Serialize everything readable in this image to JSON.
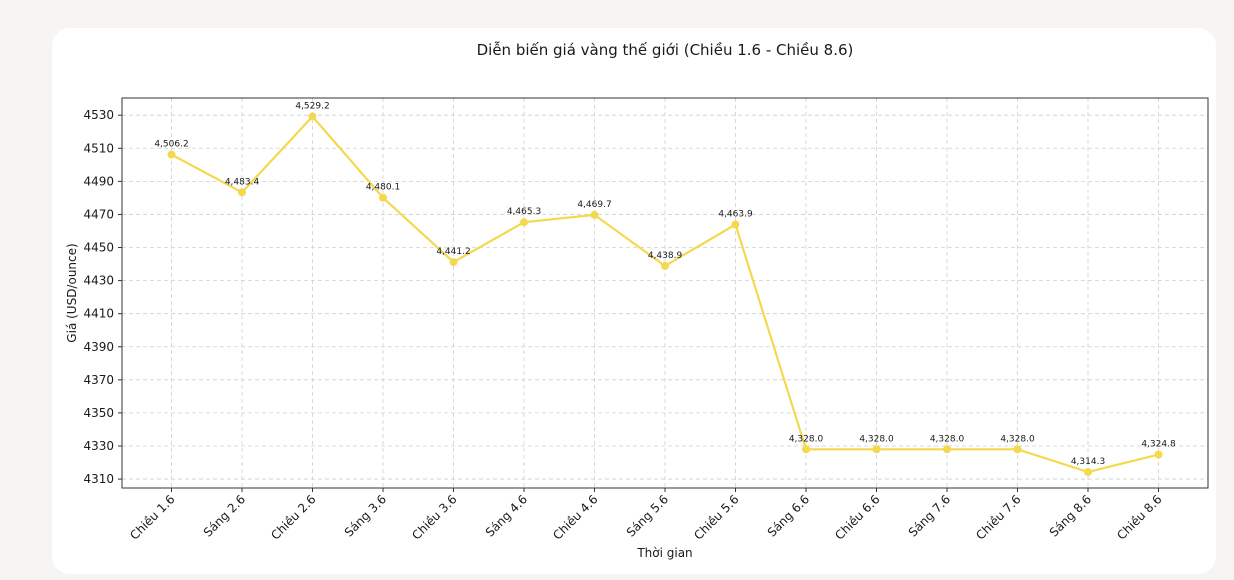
{
  "chart_data": {
    "type": "line",
    "title": "Diễn biến giá vàng thế giới (Chiều 1.6 - Chiều 8.6)",
    "xlabel": "Thời gian",
    "ylabel": "Giá (USD/ounce)",
    "categories": [
      "Chiều 1.6",
      "Sáng 2.6",
      "Chiều 2.6",
      "Sáng 3.6",
      "Chiều 3.6",
      "Sáng 4.6",
      "Chiều 4.6",
      "Sáng 5.6",
      "Chiều 5.6",
      "Sáng 6.6",
      "Chiều 6.6",
      "Sáng 7.6",
      "Chiều 7.6",
      "Sáng 8.6",
      "Chiều 8.6"
    ],
    "values": [
      4506.2,
      4483.4,
      4529.2,
      4480.1,
      4441.2,
      4465.3,
      4469.7,
      4438.9,
      4463.9,
      4328.0,
      4328.0,
      4328.0,
      4328.0,
      4314.3,
      4324.8
    ],
    "data_labels": [
      "4,506.2",
      "4,483.4",
      "4,529.2",
      "4,480.1",
      "4,441.2",
      "4,465.3",
      "4,469.7",
      "4,438.9",
      "4,463.9",
      "4,328.0",
      "4,328.0",
      "4,328.0",
      "4,328.0",
      "4,314.3",
      "4,324.8"
    ],
    "yticks": [
      "4310",
      "4330",
      "4350",
      "4370",
      "4390",
      "4410",
      "4430",
      "4450",
      "4470",
      "4490",
      "4510",
      "4530"
    ],
    "ytick_values": [
      4310,
      4330,
      4350,
      4370,
      4390,
      4410,
      4430,
      4450,
      4470,
      4490,
      4510,
      4530
    ],
    "ylim": [
      4304.6,
      4540.4
    ],
    "grid": true,
    "line_color": "#f4d94e",
    "legend": "none"
  }
}
